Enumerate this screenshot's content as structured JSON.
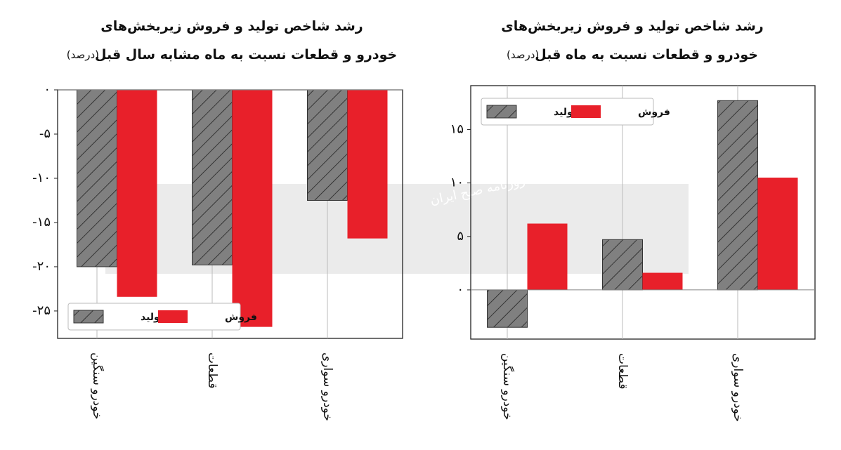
{
  "chart_data": [
    {
      "type": "bar",
      "title": "رشد شاخص تولید و فروش زیربخش‌های",
      "subtitle": "خودرو و قطعات نسبت به ماه مشابه سال قبل",
      "unit": "(درصد)",
      "categories": [
        "خودرو سنگین",
        "قطعات",
        "خودرو سواری"
      ],
      "series": [
        {
          "name": "تولید",
          "color": "#808080",
          "hatch": true,
          "values": [
            -20,
            -19.8,
            -12.5
          ]
        },
        {
          "name": "فروش",
          "color": "#e8202a",
          "hatch": false,
          "values": [
            -23.4,
            -26.8,
            -16.8
          ]
        }
      ],
      "ylim": [
        -28.1,
        0
      ],
      "yticks": [
        {
          "value": 0,
          "label": "۰"
        },
        {
          "value": -5,
          "label": "-۵"
        },
        {
          "value": -10,
          "label": "-۱۰"
        },
        {
          "value": -15,
          "label": "-۱۵"
        },
        {
          "value": -20,
          "label": "-۲۰"
        },
        {
          "value": -25,
          "label": "-۲۵"
        }
      ],
      "legend": "lower left",
      "grid": true
    },
    {
      "type": "bar",
      "title": "رشد شاخص تولید و فروش زیربخش‌های",
      "subtitle": "خودرو و قطعات نسبت به ماه قبل",
      "unit": "(درصد)",
      "categories": [
        "خودرو سنگین",
        "قطعات",
        "خودرو سواری"
      ],
      "series": [
        {
          "name": "تولید",
          "color": "#808080",
          "hatch": true,
          "values": [
            -3.5,
            4.7,
            17.7
          ]
        },
        {
          "name": "فروش",
          "color": "#e8202a",
          "hatch": false,
          "values": [
            6.2,
            1.6,
            10.5
          ]
        }
      ],
      "ylim": [
        -4.6,
        19.1
      ],
      "yticks": [
        {
          "value": 0,
          "label": "۰"
        },
        {
          "value": 5,
          "label": "۵"
        },
        {
          "value": 10,
          "label": "۱۰"
        },
        {
          "value": 15,
          "label": "۱۵"
        }
      ],
      "legend": "upper left",
      "grid": true
    }
  ],
  "watermark": "روزنامه صبح ایران"
}
